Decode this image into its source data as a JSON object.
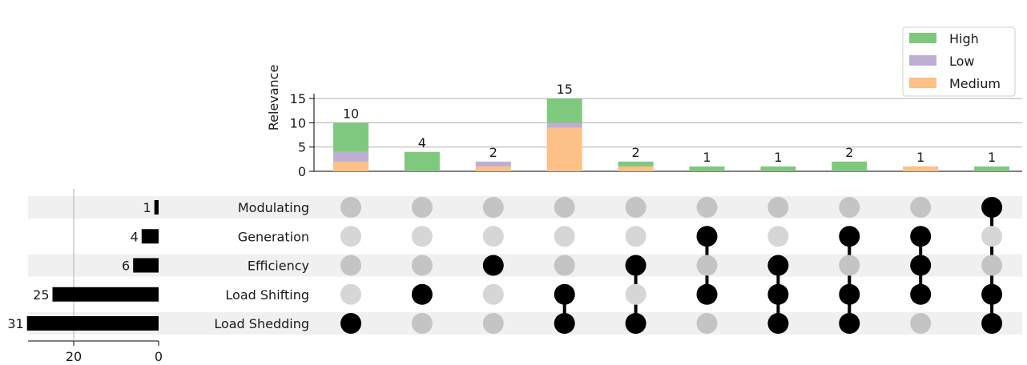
{
  "chart_data": {
    "type": "upset",
    "ylabel": "Relevance",
    "ylim": [
      0,
      16
    ],
    "yticks": [
      0,
      5,
      10,
      15
    ],
    "legend": {
      "placement": "top-right",
      "entries": [
        {
          "name": "High",
          "color": "#7fc97f"
        },
        {
          "name": "Low",
          "color": "#beaed4"
        },
        {
          "name": "Medium",
          "color": "#fdc086"
        }
      ]
    },
    "sets": [
      "Modulating",
      "Generation",
      "Efficiency",
      "Load Shifting",
      "Load Shedding"
    ],
    "set_sizes": [
      1,
      4,
      6,
      25,
      31
    ],
    "set_size_ticks": [
      20,
      0
    ],
    "set_size_xlim": [
      0,
      31
    ],
    "intersections": [
      {
        "members": [
          "Load Shedding"
        ],
        "total": "10",
        "stack": {
          "Medium": 2,
          "Low": 2,
          "High": 6
        }
      },
      {
        "members": [
          "Load Shifting"
        ],
        "total": "4",
        "stack": {
          "Medium": 0,
          "Low": 0,
          "High": 4
        }
      },
      {
        "members": [
          "Efficiency"
        ],
        "total": "2",
        "stack": {
          "Medium": 1,
          "Low": 1,
          "High": 0
        }
      },
      {
        "members": [
          "Load Shifting",
          "Load Shedding"
        ],
        "total": "15",
        "stack": {
          "Medium": 9,
          "Low": 1,
          "High": 5
        }
      },
      {
        "members": [
          "Efficiency",
          "Load Shedding"
        ],
        "total": "2",
        "stack": {
          "Medium": 1,
          "Low": 0,
          "High": 1
        }
      },
      {
        "members": [
          "Generation",
          "Load Shifting"
        ],
        "total": "1",
        "stack": {
          "Medium": 0,
          "Low": 0,
          "High": 1
        }
      },
      {
        "members": [
          "Efficiency",
          "Load Shifting",
          "Load Shedding"
        ],
        "total": "1",
        "stack": {
          "Medium": 0,
          "Low": 0,
          "High": 1
        }
      },
      {
        "members": [
          "Generation",
          "Load Shifting",
          "Load Shedding"
        ],
        "total": "2",
        "stack": {
          "Medium": 0,
          "Low": 0,
          "High": 2
        }
      },
      {
        "members": [
          "Generation",
          "Efficiency",
          "Load Shifting"
        ],
        "total": "1",
        "stack": {
          "Medium": 1,
          "Low": 0,
          "High": 0
        }
      },
      {
        "members": [
          "Modulating",
          "Load Shifting",
          "Load Shedding"
        ],
        "total": "1",
        "stack": {
          "Medium": 0,
          "Low": 0,
          "High": 1
        }
      }
    ]
  }
}
